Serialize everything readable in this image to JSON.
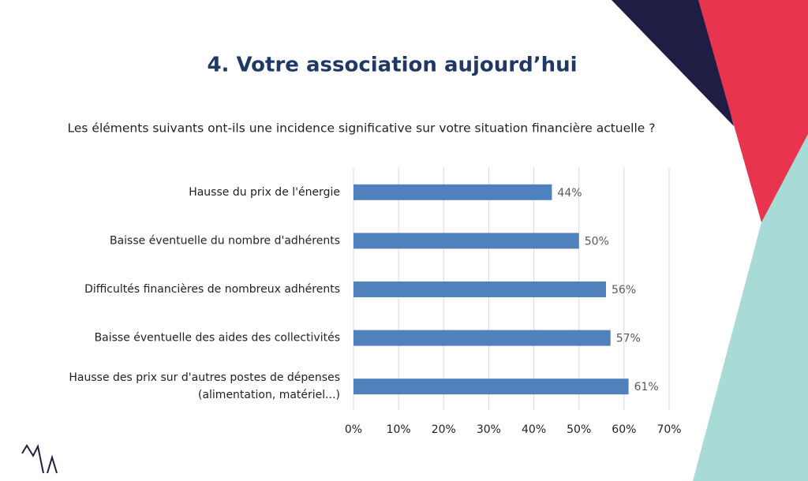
{
  "chart_data": {
    "type": "hbar",
    "title": "4. Votre association aujourd’hui",
    "subtitle": "Les éléments suivants ont-ils une incidence significative sur votre situation financière actuelle ?",
    "categories": [
      "Hausse du prix de l'énergie",
      "Baisse éventuelle du nombre d'adhérents",
      "Difficultés financières de nombreux adhérents",
      "Baisse éventuelle des aides des collectivités",
      "Hausse des prix sur d'autres postes de dépenses\n(alimentation, matériel...)"
    ],
    "values": [
      44,
      50,
      56,
      57,
      61
    ],
    "value_labels": [
      "44%",
      "50%",
      "56%",
      "57%",
      "61%"
    ],
    "color": "#4f81bd",
    "xlim": [
      0,
      70
    ],
    "xticks": [
      {
        "value": 0,
        "label": "0%"
      },
      {
        "value": 10,
        "label": "10%"
      },
      {
        "value": 20,
        "label": "20%"
      },
      {
        "value": 30,
        "label": "30%"
      },
      {
        "value": 40,
        "label": "40%"
      },
      {
        "value": 50,
        "label": "50%"
      },
      {
        "value": 60,
        "label": "60%"
      },
      {
        "value": 70,
        "label": "70%"
      }
    ],
    "grid": true
  }
}
